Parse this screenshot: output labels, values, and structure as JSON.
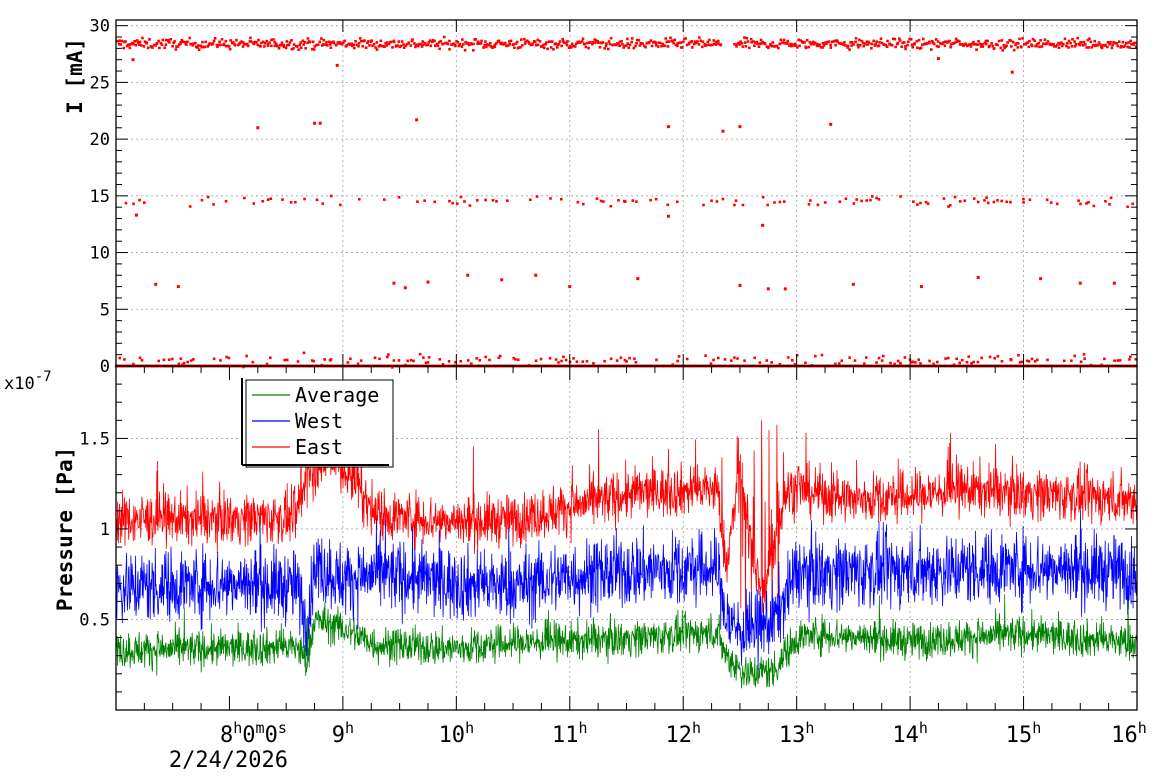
{
  "chart_data": [
    {
      "type": "scatter",
      "ylabel": "I [mA]",
      "ylim": [
        0,
        30.5
      ],
      "yticks": [
        0,
        5,
        10,
        15,
        20,
        25,
        30
      ],
      "grid": true,
      "series": [
        {
          "color": "#ff0000",
          "bands": [
            {
              "level": 28.4,
              "spread": 0.45,
              "from_h": 7.0,
              "to_h": 16.0,
              "density": 1.0,
              "note": "main beam current, gap near 12.35-12.45h"
            },
            {
              "level": 14.5,
              "spread": 0.45,
              "from_h": 7.0,
              "to_h": 16.0,
              "density": 0.35
            },
            {
              "level": 0.5,
              "spread": 0.45,
              "from_h": 7.0,
              "to_h": 16.0,
              "density": 0.45
            },
            {
              "level": 0.0,
              "spread": 0.0,
              "from_h": 7.0,
              "to_h": 16.0,
              "density": 1.0
            }
          ],
          "points": [
            {
              "x": 8.25,
              "y": 21.0
            },
            {
              "x": 8.75,
              "y": 21.4
            },
            {
              "x": 8.8,
              "y": 21.4
            },
            {
              "x": 9.65,
              "y": 21.7
            },
            {
              "x": 11.87,
              "y": 21.1
            },
            {
              "x": 12.35,
              "y": 20.7
            },
            {
              "x": 12.5,
              "y": 21.1
            },
            {
              "x": 13.3,
              "y": 21.3
            },
            {
              "x": 7.35,
              "y": 7.2
            },
            {
              "x": 7.55,
              "y": 7.0
            },
            {
              "x": 9.45,
              "y": 7.3
            },
            {
              "x": 9.55,
              "y": 6.9
            },
            {
              "x": 9.75,
              "y": 7.4
            },
            {
              "x": 10.1,
              "y": 8.0
            },
            {
              "x": 10.4,
              "y": 7.6
            },
            {
              "x": 10.7,
              "y": 8.0
            },
            {
              "x": 11.0,
              "y": 7.0
            },
            {
              "x": 11.6,
              "y": 7.7
            },
            {
              "x": 12.5,
              "y": 7.1
            },
            {
              "x": 12.75,
              "y": 6.8
            },
            {
              "x": 12.9,
              "y": 6.8
            },
            {
              "x": 13.5,
              "y": 7.2
            },
            {
              "x": 14.1,
              "y": 7.0
            },
            {
              "x": 14.6,
              "y": 7.8
            },
            {
              "x": 15.15,
              "y": 7.7
            },
            {
              "x": 15.5,
              "y": 7.3
            },
            {
              "x": 15.8,
              "y": 7.3
            },
            {
              "x": 12.7,
              "y": 12.4
            },
            {
              "x": 7.18,
              "y": 13.3
            },
            {
              "x": 11.87,
              "y": 13.2
            },
            {
              "x": 7.15,
              "y": 27.0
            },
            {
              "x": 8.95,
              "y": 26.5
            },
            {
              "x": 14.25,
              "y": 27.1
            },
            {
              "x": 14.9,
              "y": 25.9
            }
          ]
        }
      ]
    },
    {
      "type": "line",
      "ylabel": "Pressure [Pa]",
      "y_exponent_label": "x10",
      "y_exponent": "-7",
      "ylim": [
        0.0,
        1.9
      ],
      "yticks": [
        0.5,
        1,
        1.5
      ],
      "ytick_labels": [
        "0.5",
        "1",
        "1.5"
      ],
      "grid": true,
      "legend": {
        "position": "top-left",
        "entries": [
          "Average",
          "West",
          "East"
        ]
      },
      "x_unit": "hour",
      "xlim": [
        7.0,
        16.0
      ],
      "xticks": [
        {
          "h": 9,
          "label": "9",
          "sup": "h"
        },
        {
          "h": 10,
          "label": "10",
          "sup": "h"
        },
        {
          "h": 11,
          "label": "11",
          "sup": "h"
        },
        {
          "h": 12,
          "label": "12",
          "sup": "h"
        },
        {
          "h": 13,
          "label": "13",
          "sup": "h"
        },
        {
          "h": 14,
          "label": "14",
          "sup": "h"
        },
        {
          "h": 15,
          "label": "15",
          "sup": "h"
        },
        {
          "h": 16,
          "label": "16",
          "sup": "h"
        }
      ],
      "time_offset": {
        "h": 8,
        "parts": [
          "8",
          "h",
          "0",
          "m",
          "0",
          "s"
        ],
        "date": "2/24/2026"
      },
      "series": [
        {
          "name": "Average",
          "color": "#008000",
          "noise": 0.05,
          "trend": [
            {
              "x": 7.0,
              "y": 0.33
            },
            {
              "x": 8.0,
              "y": 0.34
            },
            {
              "x": 8.6,
              "y": 0.35
            },
            {
              "x": 8.68,
              "y": 0.26
            },
            {
              "x": 8.75,
              "y": 0.5
            },
            {
              "x": 9.0,
              "y": 0.45
            },
            {
              "x": 9.3,
              "y": 0.36
            },
            {
              "x": 10.0,
              "y": 0.34
            },
            {
              "x": 10.5,
              "y": 0.37
            },
            {
              "x": 11.0,
              "y": 0.38
            },
            {
              "x": 11.6,
              "y": 0.4
            },
            {
              "x": 12.3,
              "y": 0.43
            },
            {
              "x": 12.38,
              "y": 0.3
            },
            {
              "x": 12.55,
              "y": 0.2
            },
            {
              "x": 12.8,
              "y": 0.22
            },
            {
              "x": 13.0,
              "y": 0.4
            },
            {
              "x": 13.2,
              "y": 0.42
            },
            {
              "x": 14.0,
              "y": 0.38
            },
            {
              "x": 15.0,
              "y": 0.42
            },
            {
              "x": 16.0,
              "y": 0.37
            }
          ]
        },
        {
          "name": "West",
          "color": "#0000ff",
          "noise": 0.1,
          "trend": [
            {
              "x": 7.0,
              "y": 0.68
            },
            {
              "x": 8.0,
              "y": 0.7
            },
            {
              "x": 8.6,
              "y": 0.68
            },
            {
              "x": 8.68,
              "y": 0.45
            },
            {
              "x": 8.75,
              "y": 0.8
            },
            {
              "x": 9.0,
              "y": 0.72
            },
            {
              "x": 9.3,
              "y": 0.75
            },
            {
              "x": 10.0,
              "y": 0.7
            },
            {
              "x": 10.5,
              "y": 0.68
            },
            {
              "x": 11.0,
              "y": 0.74
            },
            {
              "x": 11.6,
              "y": 0.77
            },
            {
              "x": 12.3,
              "y": 0.78
            },
            {
              "x": 12.38,
              "y": 0.5
            },
            {
              "x": 12.55,
              "y": 0.42
            },
            {
              "x": 12.8,
              "y": 0.5
            },
            {
              "x": 13.0,
              "y": 0.76
            },
            {
              "x": 14.0,
              "y": 0.77
            },
            {
              "x": 15.0,
              "y": 0.79
            },
            {
              "x": 16.0,
              "y": 0.76
            }
          ]
        },
        {
          "name": "East",
          "color": "#ff0000",
          "noise": 0.07,
          "trend": [
            {
              "x": 7.0,
              "y": 1.05
            },
            {
              "x": 8.0,
              "y": 1.06
            },
            {
              "x": 8.6,
              "y": 1.06
            },
            {
              "x": 8.68,
              "y": 1.3
            },
            {
              "x": 8.9,
              "y": 1.4
            },
            {
              "x": 9.1,
              "y": 1.25
            },
            {
              "x": 9.3,
              "y": 1.08
            },
            {
              "x": 10.0,
              "y": 1.04
            },
            {
              "x": 10.5,
              "y": 1.05
            },
            {
              "x": 11.0,
              "y": 1.12
            },
            {
              "x": 11.6,
              "y": 1.2
            },
            {
              "x": 12.3,
              "y": 1.22
            },
            {
              "x": 12.38,
              "y": 0.8
            },
            {
              "x": 12.5,
              "y": 1.3
            },
            {
              "x": 12.7,
              "y": 0.6
            },
            {
              "x": 12.9,
              "y": 1.2
            },
            {
              "x": 13.0,
              "y": 1.22
            },
            {
              "x": 13.5,
              "y": 1.16
            },
            {
              "x": 14.0,
              "y": 1.18
            },
            {
              "x": 14.5,
              "y": 1.22
            },
            {
              "x": 15.0,
              "y": 1.2
            },
            {
              "x": 16.0,
              "y": 1.16
            }
          ]
        }
      ]
    }
  ]
}
